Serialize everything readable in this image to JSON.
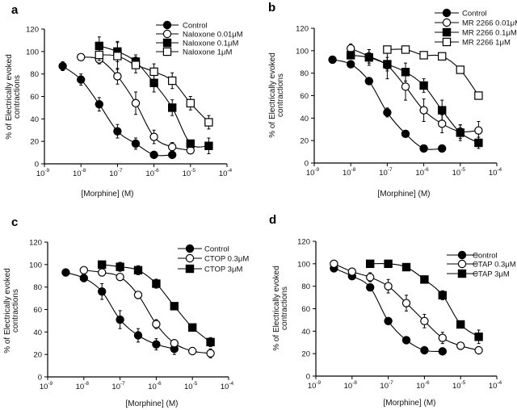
{
  "chart_data": [
    {
      "type": "line",
      "panel_label": "a",
      "xlabel": "[Morphine] (M)",
      "ylabel_lines": [
        "% of Electrically evoked",
        "contractions"
      ],
      "xscale": "log",
      "xlim_log10": [
        -9,
        -4
      ],
      "x_tick_base": "10",
      "x_tick_exponents": [
        "-9",
        "-8",
        "-7",
        "-6",
        "-5",
        "-4"
      ],
      "ylim": [
        0,
        120
      ],
      "y_ticks": [
        "0",
        "20",
        "40",
        "60",
        "80",
        "100",
        "120"
      ],
      "legend_placement": "top-right",
      "series": [
        {
          "name": "Control",
          "marker": "filled-circle",
          "log_x": [
            -8.5,
            -8,
            -7.5,
            -7,
            -6.5,
            -6,
            -5.5
          ],
          "values": [
            87,
            75,
            53,
            29,
            18,
            8,
            8
          ],
          "err": [
            4,
            5,
            6,
            6,
            5,
            2,
            2
          ]
        },
        {
          "name": "Naloxone 0.01μM",
          "marker": "open-circle",
          "log_x": [
            -8,
            -7.5,
            -7,
            -6.5,
            -6,
            -5.5,
            -5
          ],
          "values": [
            95,
            93,
            78,
            54,
            24,
            15,
            12
          ],
          "err": [
            2,
            4,
            7,
            10,
            6,
            4,
            2
          ]
        },
        {
          "name": "Naloxone 0.1μM",
          "marker": "filled-square",
          "log_x": [
            -7.5,
            -7,
            -6.5,
            -6,
            -5.5,
            -5,
            -4.5
          ],
          "values": [
            105,
            100,
            91,
            72,
            50,
            18,
            16
          ],
          "err": [
            8,
            9,
            6,
            8,
            7,
            3,
            7
          ]
        },
        {
          "name": "Naloxone 1μM",
          "marker": "open-square",
          "log_x": [
            -7.5,
            -7,
            -6.5,
            -6,
            -5.5,
            -5,
            -4.5
          ],
          "values": [
            97,
            96,
            88,
            82,
            74,
            54,
            37
          ],
          "err": [
            5,
            12,
            7,
            7,
            7,
            6,
            6
          ]
        }
      ]
    },
    {
      "type": "line",
      "panel_label": "b",
      "xlabel": "[Morphine] (M)",
      "ylabel_lines": [
        "% of Electrically evoked",
        "contractions"
      ],
      "xscale": "log",
      "xlim_log10": [
        -9,
        -4
      ],
      "x_tick_base": "10",
      "x_tick_exponents": [
        "-9",
        "-8",
        "-7",
        "-6",
        "-5",
        "-4"
      ],
      "ylim": [
        0,
        120
      ],
      "y_ticks": [
        "0",
        "20",
        "40",
        "60",
        "80",
        "100",
        "120"
      ],
      "legend_placement": "top-right",
      "series": [
        {
          "name": "Control",
          "marker": "filled-circle",
          "log_x": [
            -8.5,
            -8,
            -7.5,
            -7,
            -6.5,
            -6,
            -5.5
          ],
          "values": [
            92,
            88,
            73,
            45,
            26,
            13,
            13
          ],
          "err": [
            2,
            2,
            3,
            4,
            3,
            2,
            2
          ]
        },
        {
          "name": "MR 2266 0.01μM",
          "marker": "open-circle",
          "log_x": [
            -8,
            -7.5,
            -7,
            -6.5,
            -6,
            -5.5,
            -5,
            -4.5
          ],
          "values": [
            102,
            95,
            87,
            68,
            47,
            35,
            28,
            29
          ],
          "err": [
            4,
            6,
            12,
            12,
            10,
            8,
            6,
            8
          ]
        },
        {
          "name": "MR 2266 0.1μM",
          "marker": "filled-square",
          "log_x": [
            -8,
            -7.5,
            -7,
            -6.5,
            -6,
            -5.5,
            -5,
            -4.5
          ],
          "values": [
            96,
            94,
            88,
            81,
            69,
            47,
            27,
            18
          ],
          "err": [
            3,
            7,
            6,
            8,
            6,
            9,
            7,
            5
          ]
        },
        {
          "name": "MR 2266 1μM",
          "marker": "open-square",
          "log_x": [
            -7,
            -6.5,
            -6,
            -5.5,
            -5,
            -4.5
          ],
          "values": [
            101,
            101,
            96,
            95,
            83,
            60
          ],
          "err": [
            2,
            2,
            3,
            2,
            3,
            3
          ]
        }
      ]
    },
    {
      "type": "line",
      "panel_label": "c",
      "xlabel": "[Morphine] (M)",
      "ylabel_lines": [
        "% of Electrically evoked",
        "contractions"
      ],
      "xscale": "log",
      "xlim_log10": [
        -9,
        -4
      ],
      "x_tick_base": "10",
      "x_tick_exponents": [
        "-9",
        "-8",
        "-7",
        "-6",
        "-5",
        "-4"
      ],
      "ylim": [
        0,
        120
      ],
      "y_ticks": [
        "0",
        "20",
        "40",
        "60",
        "80",
        "100",
        "120"
      ],
      "legend_placement": "top-right",
      "series": [
        {
          "name": "Control",
          "marker": "filled-circle",
          "log_x": [
            -8.5,
            -8,
            -7.5,
            -7,
            -6.5,
            -6,
            -5.5
          ],
          "values": [
            93,
            88,
            76,
            51,
            37,
            29,
            25
          ],
          "err": [
            2,
            3,
            7,
            8,
            6,
            5,
            5
          ]
        },
        {
          "name": "CTOP 0.3μM",
          "marker": "open-circle",
          "log_x": [
            -8,
            -7.5,
            -7,
            -6.5,
            -6,
            -5.5,
            -5,
            -4.5
          ],
          "values": [
            95,
            93,
            89,
            73,
            47,
            30,
            23,
            21
          ],
          "err": [
            2,
            2,
            2,
            2,
            4,
            3,
            3,
            4
          ]
        },
        {
          "name": "CTOP 3μM",
          "marker": "filled-square",
          "log_x": [
            -7.5,
            -7,
            -6.5,
            -6,
            -5.5,
            -5,
            -4.5
          ],
          "values": [
            100,
            98,
            95,
            83,
            63,
            44,
            31
          ],
          "err": [
            2,
            4,
            4,
            4,
            3,
            2,
            4
          ]
        }
      ]
    },
    {
      "type": "line",
      "panel_label": "d",
      "xlabel": "[Morphine] (M)",
      "ylabel_lines": [
        "% of Electrically evoked",
        "contractions"
      ],
      "xscale": "log",
      "xlim_log10": [
        -9,
        -4
      ],
      "x_tick_base": "10",
      "x_tick_exponents": [
        "-9",
        "-8",
        "-7",
        "-6",
        "-5",
        "-4"
      ],
      "ylim": [
        0,
        120
      ],
      "y_ticks": [
        "0",
        "20",
        "40",
        "60",
        "80",
        "100",
        "120"
      ],
      "legend_placement": "top-right",
      "series": [
        {
          "name": "Control",
          "marker": "filled-circle",
          "log_x": [
            -8.5,
            -8,
            -7.5,
            -7,
            -6.5,
            -6,
            -5.5
          ],
          "values": [
            96,
            89,
            79,
            49,
            32,
            23,
            22
          ],
          "err": [
            2,
            2,
            2,
            3,
            2,
            2,
            2
          ]
        },
        {
          "name": "CTAP 0.3μM",
          "marker": "open-circle",
          "log_x": [
            -8.5,
            -8,
            -7.5,
            -7,
            -6.5,
            -6,
            -5.5,
            -5,
            -4.5
          ],
          "values": [
            100,
            93,
            88,
            80,
            65,
            49,
            34,
            27,
            23
          ],
          "err": [
            2,
            2,
            4,
            6,
            7,
            6,
            5,
            3,
            2
          ]
        },
        {
          "name": "CTAP 3μM",
          "marker": "filled-square",
          "log_x": [
            -7.5,
            -7,
            -6.5,
            -6,
            -5.5,
            -5,
            -4.5
          ],
          "values": [
            100,
            100,
            97,
            86,
            72,
            46,
            35
          ],
          "err": [
            2,
            2,
            2,
            2,
            4,
            2,
            6
          ]
        }
      ]
    }
  ]
}
